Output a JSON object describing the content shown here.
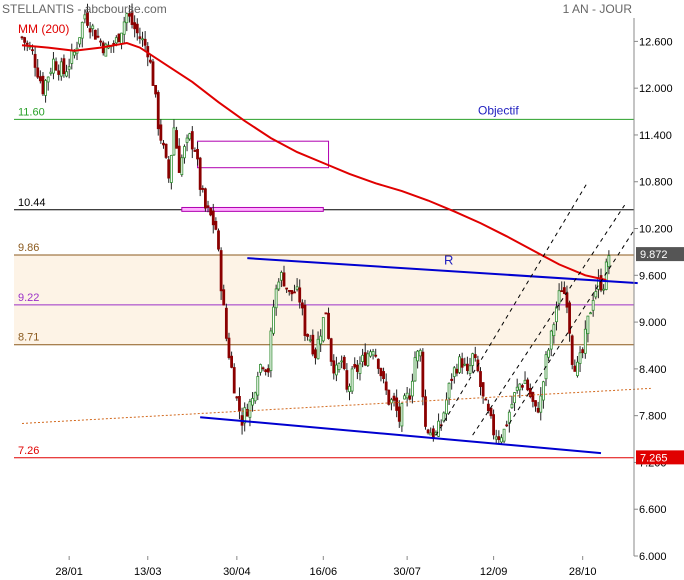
{
  "header": {
    "title": "STELLANTIS - abcbourse.com",
    "period": "1 AN - JOUR",
    "ma_label": "MM (200)"
  },
  "chart_data": {
    "type": "candlestick",
    "title": "STELLANTIS - abcbourse.com",
    "subtitle": "1 AN - JOUR",
    "ylim": [
      6.0,
      12.9
    ],
    "y_ticks": [
      6.0,
      6.6,
      7.2,
      7.8,
      8.4,
      9.0,
      9.6,
      10.2,
      10.8,
      11.4,
      12.0,
      12.6
    ],
    "y_tick_labels": [
      "6.000",
      "6.600",
      "7.200",
      "7.800",
      "8.400",
      "9.000",
      "9.600",
      "10.200",
      "10.800",
      "11.400",
      "12.000",
      "12.600"
    ],
    "x_tick_labels": [
      "28/01",
      "13/03",
      "30/04",
      "16/06",
      "30/07",
      "12/09",
      "28/10"
    ],
    "x_tick_index": [
      18,
      48,
      82,
      115,
      147,
      180,
      214
    ],
    "n_days": 235,
    "last_price": 9.872,
    "last_price_label": "9.872",
    "support_label": "7.265",
    "horizontal_levels": [
      {
        "value": 11.6,
        "label": "11.60",
        "color": "#2aa02a"
      },
      {
        "value": 10.44,
        "label": "10.44",
        "color": "#000000"
      },
      {
        "value": 9.86,
        "label": "9.86",
        "color": "#8b5a1e"
      },
      {
        "value": 9.22,
        "label": "9.22",
        "color": "#9b30c8"
      },
      {
        "value": 8.71,
        "label": "8.71",
        "color": "#8b5a1e"
      },
      {
        "value": 7.26,
        "label": "7.26",
        "color": "#e00000"
      }
    ],
    "zone": {
      "from": 8.71,
      "to": 9.86,
      "color": "#fdf3e6"
    },
    "annotations": [
      {
        "text": "Objectif",
        "color": "#2020c0"
      },
      {
        "text": "R",
        "color": "#2020c0"
      }
    ],
    "ma200": [
      [
        0,
        12.55
      ],
      [
        10,
        12.52
      ],
      [
        20,
        12.48
      ],
      [
        30,
        12.52
      ],
      [
        40,
        12.58
      ],
      [
        45,
        12.52
      ],
      [
        55,
        12.3
      ],
      [
        65,
        12.08
      ],
      [
        75,
        11.82
      ],
      [
        85,
        11.58
      ],
      [
        95,
        11.36
      ],
      [
        105,
        11.18
      ],
      [
        115,
        11.04
      ],
      [
        125,
        10.9
      ],
      [
        135,
        10.78
      ],
      [
        145,
        10.68
      ],
      [
        155,
        10.56
      ],
      [
        165,
        10.42
      ],
      [
        175,
        10.27
      ],
      [
        185,
        10.1
      ],
      [
        195,
        9.92
      ],
      [
        205,
        9.74
      ],
      [
        215,
        9.6
      ],
      [
        223,
        9.54
      ]
    ],
    "price_path": [
      [
        0,
        12.65
      ],
      [
        4,
        12.45
      ],
      [
        8,
        12.0
      ],
      [
        12,
        12.35
      ],
      [
        16,
        12.2
      ],
      [
        20,
        12.45
      ],
      [
        24,
        12.95
      ],
      [
        28,
        12.7
      ],
      [
        32,
        12.5
      ],
      [
        36,
        12.6
      ],
      [
        40,
        12.95
      ],
      [
        44,
        12.7
      ],
      [
        48,
        12.5
      ],
      [
        50,
        12.1
      ],
      [
        52,
        11.55
      ],
      [
        54,
        11.2
      ],
      [
        56,
        10.85
      ],
      [
        58,
        11.5
      ],
      [
        60,
        11.0
      ],
      [
        62,
        11.2
      ],
      [
        64,
        11.35
      ],
      [
        66,
        11.25
      ],
      [
        68,
        10.75
      ],
      [
        70,
        10.45
      ],
      [
        72,
        10.35
      ],
      [
        74,
        10.2
      ],
      [
        76,
        9.5
      ],
      [
        78,
        8.8
      ],
      [
        80,
        8.4
      ],
      [
        82,
        8.0
      ],
      [
        84,
        7.75
      ],
      [
        86,
        7.9
      ],
      [
        88,
        8.0
      ],
      [
        90,
        8.4
      ],
      [
        92,
        8.5
      ],
      [
        94,
        8.4
      ],
      [
        96,
        9.2
      ],
      [
        98,
        9.6
      ],
      [
        100,
        9.55
      ],
      [
        102,
        9.35
      ],
      [
        104,
        9.4
      ],
      [
        106,
        9.3
      ],
      [
        108,
        8.9
      ],
      [
        110,
        8.8
      ],
      [
        112,
        8.6
      ],
      [
        114,
        8.9
      ],
      [
        116,
        9.15
      ],
      [
        118,
        8.55
      ],
      [
        120,
        8.35
      ],
      [
        122,
        8.5
      ],
      [
        124,
        8.1
      ],
      [
        126,
        8.3
      ],
      [
        128,
        8.4
      ],
      [
        130,
        8.5
      ],
      [
        132,
        8.6
      ],
      [
        134,
        8.7
      ],
      [
        136,
        8.5
      ],
      [
        138,
        8.2
      ],
      [
        140,
        8.0
      ],
      [
        142,
        7.95
      ],
      [
        144,
        7.75
      ],
      [
        146,
        7.95
      ],
      [
        148,
        8.1
      ],
      [
        150,
        8.55
      ],
      [
        152,
        8.6
      ],
      [
        154,
        7.65
      ],
      [
        156,
        7.6
      ],
      [
        158,
        7.55
      ],
      [
        160,
        7.7
      ],
      [
        162,
        8.0
      ],
      [
        164,
        8.3
      ],
      [
        166,
        8.45
      ],
      [
        168,
        8.5
      ],
      [
        170,
        8.3
      ],
      [
        172,
        8.55
      ],
      [
        174,
        8.35
      ],
      [
        176,
        8.0
      ],
      [
        178,
        7.8
      ],
      [
        180,
        7.6
      ],
      [
        182,
        7.55
      ],
      [
        184,
        7.6
      ],
      [
        186,
        7.85
      ],
      [
        188,
        8.05
      ],
      [
        190,
        8.2
      ],
      [
        192,
        8.25
      ],
      [
        194,
        8.05
      ],
      [
        196,
        7.85
      ],
      [
        198,
        8.0
      ],
      [
        200,
        8.5
      ],
      [
        202,
        8.8
      ],
      [
        204,
        9.2
      ],
      [
        206,
        9.45
      ],
      [
        208,
        9.3
      ],
      [
        210,
        8.55
      ],
      [
        212,
        8.4
      ],
      [
        214,
        8.6
      ],
      [
        216,
        9.0
      ],
      [
        218,
        9.35
      ],
      [
        220,
        9.5
      ],
      [
        222,
        9.5
      ],
      [
        224,
        9.87
      ]
    ],
    "trendlines": [
      {
        "name": "resistance-line",
        "color": "#0000d0",
        "width": 2,
        "dash": false,
        "points": [
          [
            86,
            9.82
          ],
          [
            235,
            9.5
          ]
        ]
      },
      {
        "name": "support-line",
        "color": "#0000d0",
        "width": 2,
        "dash": false,
        "points": [
          [
            68,
            7.78
          ],
          [
            221,
            7.32
          ]
        ]
      },
      {
        "name": "long-term-support-line",
        "color": "#d2691e",
        "width": 1,
        "dash": "2,2",
        "points": [
          [
            0,
            7.7
          ],
          [
            240,
            8.15
          ]
        ]
      },
      {
        "name": "channel-upper-line",
        "color": "#000000",
        "width": 1,
        "dash": "4,4",
        "points": [
          [
            158,
            7.55
          ],
          [
            216,
            10.8
          ]
        ]
      },
      {
        "name": "channel-middle-line",
        "color": "#000000",
        "width": 1,
        "dash": "4,4",
        "points": [
          [
            172,
            7.55
          ],
          [
            230,
            10.5
          ]
        ]
      },
      {
        "name": "channel-lower-line",
        "color": "#000000",
        "width": 1,
        "dash": "4,4",
        "points": [
          [
            186,
            7.7
          ],
          [
            234,
            10.2
          ]
        ]
      }
    ],
    "boxes": [
      {
        "name": "gap-box-upper",
        "color": "#b000b0",
        "from_index": 67,
        "to_index": 117,
        "low": 10.98,
        "high": 11.32,
        "fill": "#ffffff"
      },
      {
        "name": "gap-box-lower",
        "color": "#b000b0",
        "from_index": 61,
        "to_index": 115,
        "low": 10.42,
        "high": 10.47,
        "fill": "#ffb0ff"
      }
    ]
  }
}
